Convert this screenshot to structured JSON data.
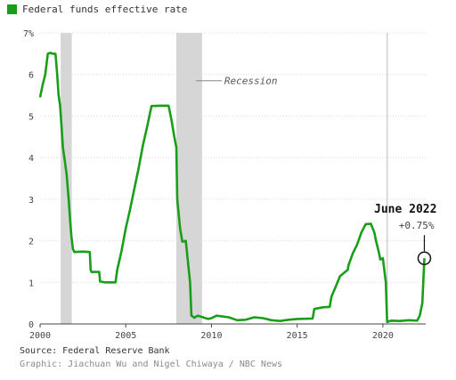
{
  "legend": {
    "label": "Federal funds effective rate",
    "color": "#1a9e1a"
  },
  "footer": {
    "source": "Source: Federal Reserve Bank",
    "credit": "Graphic: Jiachuan Wu and Nigel Chiwaya / NBC News"
  },
  "chart_data": {
    "type": "line",
    "xlim": [
      2000,
      2022.5
    ],
    "ylim": [
      0,
      7
    ],
    "y_ticks": [
      {
        "value": 0,
        "label": "0"
      },
      {
        "value": 1,
        "label": "1"
      },
      {
        "value": 2,
        "label": "2"
      },
      {
        "value": 3,
        "label": "3"
      },
      {
        "value": 4,
        "label": "4"
      },
      {
        "value": 5,
        "label": "5"
      },
      {
        "value": 6,
        "label": "6"
      },
      {
        "value": 7,
        "label": "7%"
      }
    ],
    "x_ticks": [
      {
        "value": 2000,
        "label": "2000"
      },
      {
        "value": 2005,
        "label": "2005"
      },
      {
        "value": 2010,
        "label": "2010"
      },
      {
        "value": 2015,
        "label": "2015"
      },
      {
        "value": 2020,
        "label": "2020"
      }
    ],
    "grid": "horizontal",
    "recessions": [
      {
        "start": 2001.2,
        "end": 2001.85
      },
      {
        "start": 2007.95,
        "end": 2009.45
      }
    ],
    "recession_label": "Recession",
    "annotation": {
      "title": "June 2022",
      "value": "+0.75%",
      "x": 2022.42,
      "y": 1.58
    },
    "series": [
      {
        "color": "#1a9e1a",
        "points": [
          [
            2000.0,
            5.45
          ],
          [
            2000.15,
            5.75
          ],
          [
            2000.3,
            6.0
          ],
          [
            2000.45,
            6.5
          ],
          [
            2000.6,
            6.52
          ],
          [
            2000.75,
            6.5
          ],
          [
            2000.9,
            6.5
          ],
          [
            2001.0,
            6.0
          ],
          [
            2001.08,
            5.5
          ],
          [
            2001.17,
            5.25
          ],
          [
            2001.25,
            4.75
          ],
          [
            2001.33,
            4.25
          ],
          [
            2001.45,
            3.9
          ],
          [
            2001.55,
            3.6
          ],
          [
            2001.67,
            3.0
          ],
          [
            2001.75,
            2.5
          ],
          [
            2001.83,
            2.1
          ],
          [
            2001.92,
            1.8
          ],
          [
            2002.0,
            1.73
          ],
          [
            2002.5,
            1.74
          ],
          [
            2002.9,
            1.73
          ],
          [
            2002.95,
            1.3
          ],
          [
            2003.0,
            1.25
          ],
          [
            2003.45,
            1.25
          ],
          [
            2003.5,
            1.02
          ],
          [
            2003.8,
            1.0
          ],
          [
            2004.0,
            1.0
          ],
          [
            2004.4,
            1.0
          ],
          [
            2004.5,
            1.3
          ],
          [
            2004.75,
            1.75
          ],
          [
            2005.0,
            2.3
          ],
          [
            2005.25,
            2.75
          ],
          [
            2005.5,
            3.25
          ],
          [
            2005.75,
            3.75
          ],
          [
            2006.0,
            4.3
          ],
          [
            2006.25,
            4.75
          ],
          [
            2006.5,
            5.24
          ],
          [
            2007.0,
            5.25
          ],
          [
            2007.5,
            5.25
          ],
          [
            2007.67,
            4.9
          ],
          [
            2007.83,
            4.5
          ],
          [
            2007.95,
            4.25
          ],
          [
            2008.0,
            3.0
          ],
          [
            2008.17,
            2.3
          ],
          [
            2008.3,
            1.98
          ],
          [
            2008.5,
            2.0
          ],
          [
            2008.75,
            1.0
          ],
          [
            2008.83,
            0.2
          ],
          [
            2009.0,
            0.15
          ],
          [
            2009.2,
            0.2
          ],
          [
            2009.5,
            0.16
          ],
          [
            2009.8,
            0.12
          ],
          [
            2010.0,
            0.14
          ],
          [
            2010.3,
            0.2
          ],
          [
            2011.0,
            0.16
          ],
          [
            2011.5,
            0.09
          ],
          [
            2012.0,
            0.1
          ],
          [
            2012.5,
            0.16
          ],
          [
            2013.0,
            0.14
          ],
          [
            2013.5,
            0.09
          ],
          [
            2014.0,
            0.07
          ],
          [
            2014.5,
            0.1
          ],
          [
            2015.0,
            0.12
          ],
          [
            2015.9,
            0.13
          ],
          [
            2016.0,
            0.36
          ],
          [
            2016.5,
            0.4
          ],
          [
            2016.9,
            0.41
          ],
          [
            2017.0,
            0.66
          ],
          [
            2017.25,
            0.9
          ],
          [
            2017.5,
            1.15
          ],
          [
            2017.95,
            1.3
          ],
          [
            2018.0,
            1.42
          ],
          [
            2018.25,
            1.7
          ],
          [
            2018.5,
            1.91
          ],
          [
            2018.75,
            2.2
          ],
          [
            2019.0,
            2.4
          ],
          [
            2019.3,
            2.41
          ],
          [
            2019.5,
            2.2
          ],
          [
            2019.6,
            2.0
          ],
          [
            2019.75,
            1.75
          ],
          [
            2019.85,
            1.55
          ],
          [
            2020.0,
            1.58
          ],
          [
            2020.17,
            1.0
          ],
          [
            2020.25,
            0.05
          ],
          [
            2020.5,
            0.08
          ],
          [
            2021.0,
            0.07
          ],
          [
            2021.5,
            0.09
          ],
          [
            2022.0,
            0.08
          ],
          [
            2022.15,
            0.2
          ],
          [
            2022.3,
            0.5
          ],
          [
            2022.42,
            1.58
          ]
        ]
      }
    ]
  }
}
